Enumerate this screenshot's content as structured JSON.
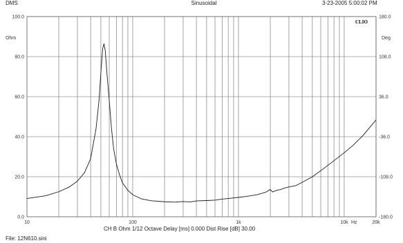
{
  "header": {
    "left": "DMS",
    "center": "Sinusoidal",
    "right": "3-23-2005 5:00:02 PM",
    "brand": "CLIO"
  },
  "footer": {
    "settings": "CH B   Ohm   1/12 Octave   Delay [ms] 0.000   Dist Rise [dB] 30.00",
    "file": "File: 12N610.sini"
  },
  "chart_data": {
    "type": "line",
    "x_scale": "log",
    "xlim": [
      10,
      20000
    ],
    "x_tick_labels": [
      "10",
      "100",
      "1k",
      "10k",
      "20k"
    ],
    "x_unit_label": "Hz",
    "left_axis": {
      "unit": "Ohm",
      "ylim": [
        0,
        100
      ],
      "tick_labels": [
        "0.0",
        "20.0",
        "40.0",
        "60.0",
        "80.0",
        "100.0"
      ]
    },
    "right_axis": {
      "unit": "Deg",
      "ylim": [
        -180,
        180
      ],
      "tick_labels": [
        "-180.0",
        "-108.0",
        "-36.0",
        "36.0",
        "108.0",
        "180.0"
      ]
    },
    "grid": true,
    "series": [
      {
        "color": "#1a1a1a",
        "points": [
          [
            10,
            9.1
          ],
          [
            15,
            10.5
          ],
          [
            20,
            12.5
          ],
          [
            25,
            14.8
          ],
          [
            30,
            17.8
          ],
          [
            35,
            22
          ],
          [
            40,
            29
          ],
          [
            45,
            44
          ],
          [
            48,
            58
          ],
          [
            50,
            72
          ],
          [
            52,
            84
          ],
          [
            53.5,
            86.4
          ],
          [
            55,
            83
          ],
          [
            57,
            72
          ],
          [
            60,
            58
          ],
          [
            63,
            44
          ],
          [
            66,
            34
          ],
          [
            70,
            26.5
          ],
          [
            75,
            21
          ],
          [
            80,
            17
          ],
          [
            90,
            13.2
          ],
          [
            100,
            11
          ],
          [
            120,
            9
          ],
          [
            150,
            8
          ],
          [
            200,
            7.5
          ],
          [
            250,
            7.3
          ],
          [
            300,
            7.6
          ],
          [
            350,
            7.4
          ],
          [
            400,
            7.9
          ],
          [
            500,
            8.1
          ],
          [
            600,
            8.3
          ],
          [
            700,
            8.8
          ],
          [
            800,
            9.1
          ],
          [
            1000,
            9.7
          ],
          [
            1200,
            10.2
          ],
          [
            1500,
            11
          ],
          [
            1800,
            12.2
          ],
          [
            2000,
            13.6
          ],
          [
            2100,
            12.4
          ],
          [
            2300,
            13.2
          ],
          [
            2500,
            13.6
          ],
          [
            2700,
            14.3
          ],
          [
            3000,
            14.9
          ],
          [
            3500,
            15.6
          ],
          [
            4000,
            17.2
          ],
          [
            5000,
            20
          ],
          [
            6000,
            23
          ],
          [
            8000,
            28
          ],
          [
            10000,
            32
          ],
          [
            12000,
            35.5
          ],
          [
            15000,
            40.5
          ],
          [
            18000,
            45.5
          ],
          [
            20000,
            48.4
          ]
        ]
      }
    ]
  }
}
